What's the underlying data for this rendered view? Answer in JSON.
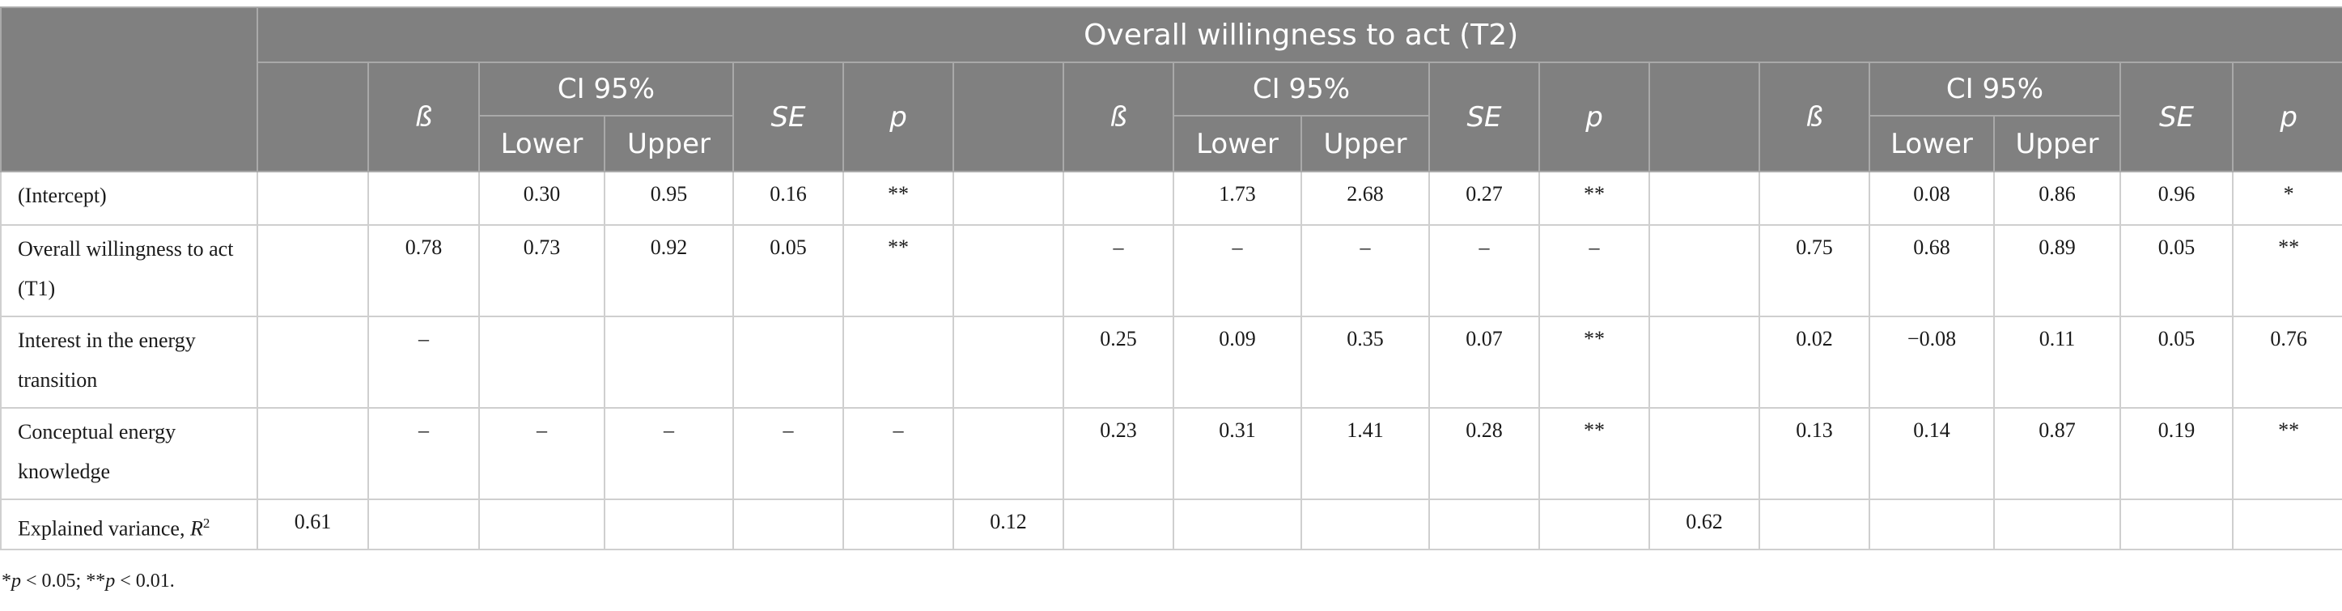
{
  "table": {
    "title": "Overall willingness to act (T2)",
    "headers": {
      "beta": "ß",
      "ci": "CI 95%",
      "lower": "Lower",
      "upper": "Upper",
      "se": "SE",
      "p": "p"
    },
    "rows": [
      {
        "label": "(Intercept)",
        "cells": [
          "",
          "",
          "0.30",
          "0.95",
          "0.16",
          "**",
          "",
          "",
          "1.73",
          "2.68",
          "0.27",
          "**",
          "",
          "",
          "0.08",
          "0.86",
          "0.96",
          "*"
        ]
      },
      {
        "label": "Overall willingness to act (T1)",
        "cells": [
          "",
          "0.78",
          "0.73",
          "0.92",
          "0.05",
          "**",
          "",
          "–",
          "–",
          "–",
          "–",
          "–",
          "",
          "0.75",
          "0.68",
          "0.89",
          "0.05",
          "**"
        ]
      },
      {
        "label": "Interest in the energy transition",
        "cells": [
          "",
          "–",
          "",
          "",
          "",
          "",
          "",
          "0.25",
          "0.09",
          "0.35",
          "0.07",
          "**",
          "",
          "0.02",
          "−0.08",
          "0.11",
          "0.05",
          "0.76"
        ]
      },
      {
        "label": "Conceptual energy knowledge",
        "cells": [
          "",
          "–",
          "–",
          "–",
          "–",
          "–",
          "",
          "0.23",
          "0.31",
          "1.41",
          "0.28",
          "**",
          "",
          "0.13",
          "0.14",
          "0.87",
          "0.19",
          "**"
        ]
      },
      {
        "label": "Explained variance, ",
        "label_italic": "R",
        "label_sup": "2",
        "cells": [
          "0.61",
          "",
          "",
          "",
          "",
          "",
          "0.12",
          "",
          "",
          "",
          "",
          "",
          "0.62",
          "",
          "",
          "",
          "",
          ""
        ]
      }
    ]
  },
  "footnote": {
    "star1": "*",
    "p1": "p",
    "t1": " < 0.05; **",
    "p2": "p",
    "t2": " < 0.01."
  }
}
